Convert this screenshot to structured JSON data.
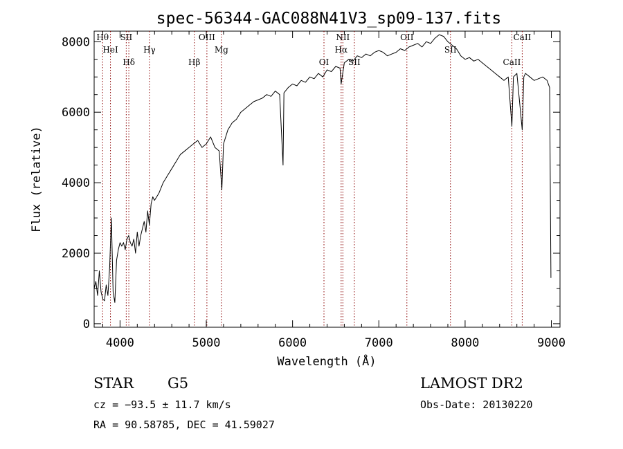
{
  "chart_data": {
    "type": "line",
    "title": "spec-56344-GAC088N41V3_sp09-137.fits",
    "xlabel": "Wavelength (Å)",
    "ylabel": "Flux (relative)",
    "xlim": [
      3700,
      9100
    ],
    "ylim": [
      -100,
      8300
    ],
    "xticks": [
      4000,
      5000,
      6000,
      7000,
      8000,
      9000
    ],
    "yticks": [
      0,
      2000,
      4000,
      6000,
      8000
    ],
    "grid": false,
    "colors": {
      "spectrum": "#000000",
      "line_markers": "#8b0000"
    },
    "spectrum": {
      "x": [
        3700,
        3720,
        3740,
        3760,
        3780,
        3800,
        3820,
        3840,
        3860,
        3880,
        3900,
        3920,
        3940,
        3960,
        3980,
        4000,
        4020,
        4040,
        4060,
        4080,
        4100,
        4120,
        4140,
        4160,
        4180,
        4200,
        4220,
        4240,
        4260,
        4280,
        4300,
        4320,
        4340,
        4360,
        4380,
        4400,
        4450,
        4500,
        4550,
        4600,
        4650,
        4700,
        4750,
        4800,
        4850,
        4900,
        4950,
        5000,
        5050,
        5100,
        5150,
        5180,
        5200,
        5250,
        5300,
        5350,
        5400,
        5450,
        5500,
        5550,
        5600,
        5650,
        5700,
        5750,
        5800,
        5850,
        5890,
        5900,
        5950,
        6000,
        6050,
        6100,
        6150,
        6200,
        6250,
        6300,
        6350,
        6400,
        6450,
        6500,
        6550,
        6563,
        6600,
        6650,
        6700,
        6750,
        6800,
        6850,
        6900,
        6950,
        7000,
        7050,
        7100,
        7150,
        7200,
        7250,
        7300,
        7350,
        7400,
        7450,
        7500,
        7550,
        7600,
        7650,
        7700,
        7750,
        7800,
        7850,
        7900,
        7950,
        8000,
        8050,
        8100,
        8150,
        8200,
        8250,
        8300,
        8350,
        8400,
        8450,
        8500,
        8542,
        8560,
        8600,
        8662,
        8680,
        8700,
        8750,
        8800,
        8850,
        8900,
        8950,
        8980,
        8995
      ],
      "y": [
        1000,
        1200,
        800,
        1500,
        900,
        700,
        650,
        1100,
        800,
        1600,
        3000,
        900,
        600,
        1800,
        2100,
        2300,
        2200,
        2300,
        2100,
        2400,
        2500,
        2300,
        2200,
        2400,
        2000,
        2600,
        2200,
        2500,
        2700,
        2900,
        2600,
        3200,
        2800,
        3400,
        3600,
        3500,
        3700,
        4000,
        4200,
        4400,
        4600,
        4800,
        4900,
        5000,
        5100,
        5200,
        5000,
        5100,
        5300,
        5000,
        4900,
        3800,
        5100,
        5500,
        5700,
        5800,
        6000,
        6100,
        6200,
        6300,
        6350,
        6400,
        6500,
        6450,
        6600,
        6500,
        4500,
        6550,
        6700,
        6800,
        6750,
        6900,
        6850,
        7000,
        6950,
        7100,
        7000,
        7200,
        7150,
        7300,
        7250,
        6800,
        7400,
        7500,
        7450,
        7600,
        7550,
        7650,
        7600,
        7700,
        7750,
        7700,
        7600,
        7650,
        7700,
        7800,
        7750,
        7850,
        7900,
        7950,
        7850,
        8000,
        7950,
        8100,
        8200,
        8150,
        8000,
        7900,
        7800,
        7600,
        7500,
        7550,
        7450,
        7500,
        7400,
        7300,
        7200,
        7100,
        7000,
        6900,
        7000,
        5600,
        7000,
        7100,
        5500,
        7000,
        7100,
        7000,
        6900,
        6950,
        7000,
        6900,
        6700,
        1300
      ]
    },
    "lines": [
      {
        "label": "Hθ",
        "wavelength": 3798
      },
      {
        "label": "HeI",
        "wavelength": 3889
      },
      {
        "label": "Hδ",
        "wavelength": 4102
      },
      {
        "label": "SII",
        "wavelength": 4072
      },
      {
        "label": "Hγ",
        "wavelength": 4341
      },
      {
        "label": "Hβ",
        "wavelength": 4861
      },
      {
        "label": "OIII",
        "wavelength": 5007
      },
      {
        "label": "Mg",
        "wavelength": 5175
      },
      {
        "label": "OI",
        "wavelength": 6364
      },
      {
        "label": "NII",
        "wavelength": 6583
      },
      {
        "label": "Hα",
        "wavelength": 6563
      },
      {
        "label": "SII",
        "wavelength": 6716
      },
      {
        "label": "OII",
        "wavelength": 7325
      },
      {
        "label": "SII",
        "wavelength": 7830
      },
      {
        "label": "CaII",
        "wavelength": 8542
      },
      {
        "label": "CaII",
        "wavelength": 8662
      }
    ]
  },
  "info": {
    "object_class": "STAR",
    "subclass": "G5",
    "survey": "LAMOST DR2",
    "redshift_text": "cz = −93.5 ± 11.7 km/s",
    "obs_date": "Obs-Date: 20130220",
    "coords": "RA =  90.58785, DEC =  41.59027"
  }
}
